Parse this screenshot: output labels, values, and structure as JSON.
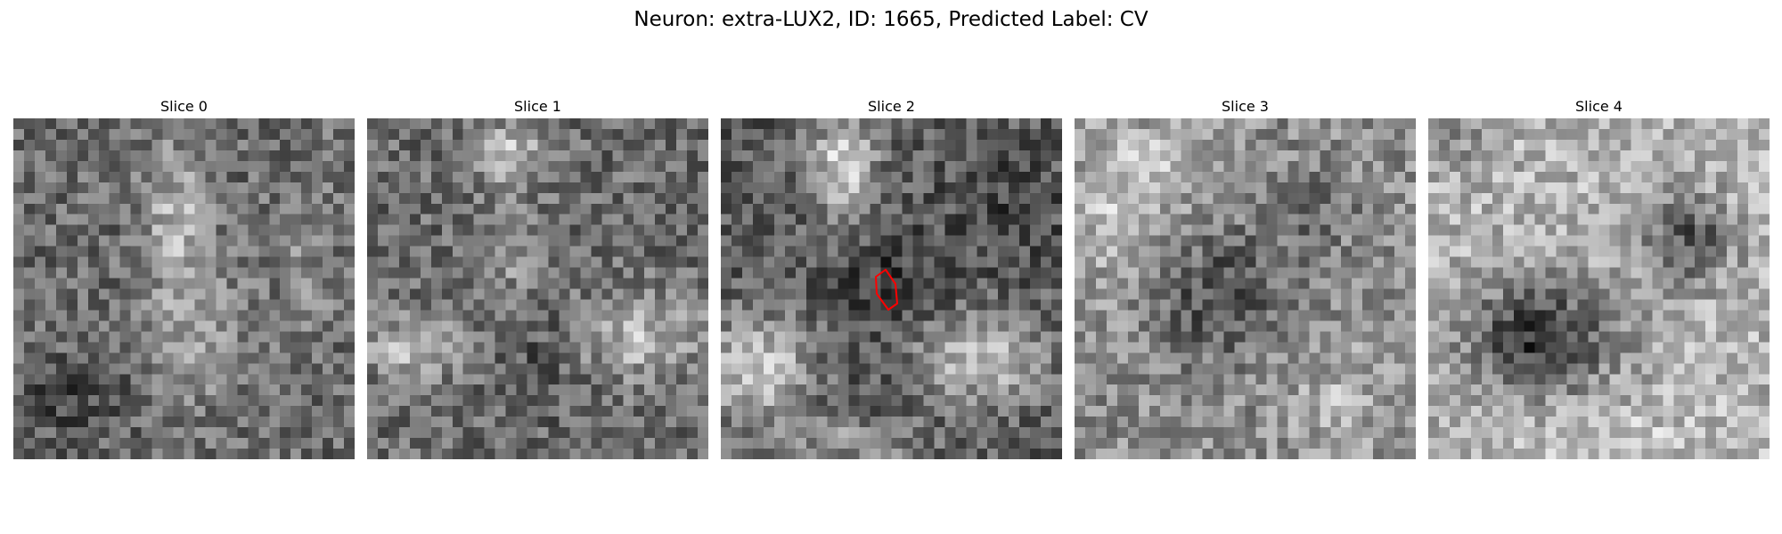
{
  "figure": {
    "title": "Neuron: extra-LUX2, ID: 1665, Predicted Label: CV"
  },
  "panels": [
    {
      "title": "Slice 0",
      "seed": 11,
      "texture": "faint vertical bright streak through center",
      "has_contour": false
    },
    {
      "title": "Slice 1",
      "seed": 23,
      "texture": "bright top-center, bright lower band",
      "has_contour": false
    },
    {
      "title": "Slice 2",
      "seed": 37,
      "texture": "bright top-center wedge, bright bottom band, dark center",
      "has_contour": true,
      "contour_color": "#ff0000"
    },
    {
      "title": "Slice 3",
      "seed": 41,
      "texture": "bright left, dark center blob",
      "has_contour": false
    },
    {
      "title": "Slice 4",
      "seed": 53,
      "texture": "bright surround, dark left-center blob, dark upper-right blob",
      "has_contour": false
    }
  ],
  "colors": {
    "contour": "#ff0000",
    "background": "#ffffff"
  }
}
